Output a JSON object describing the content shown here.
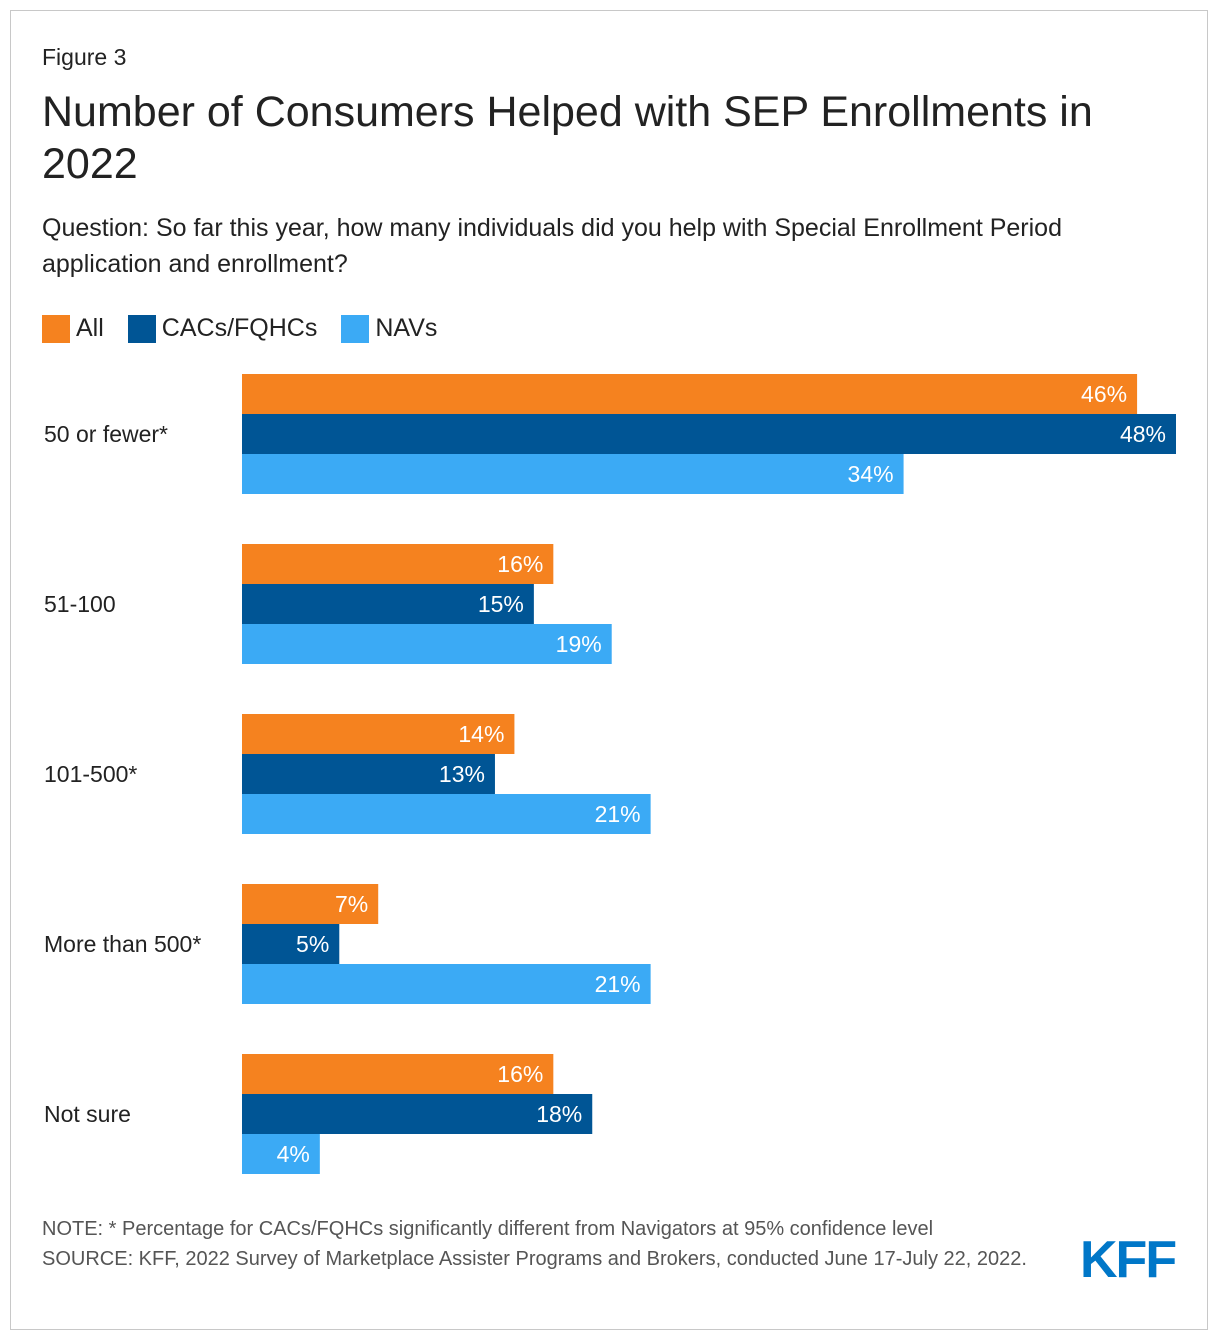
{
  "figure_label": "Figure 3",
  "title": "Number of Consumers Helped with SEP Enrollments in 2022",
  "subtitle": "Question: So far this year, how many individuals did you help with Special Enrollment Period application and enrollment?",
  "note": "NOTE: * Percentage for CACs/FQHCs significantly different from Navigators at 95% confidence level",
  "source": "SOURCE: KFF, 2022 Survey of Marketplace Assister Programs and Brokers, conducted June 17-July 22, 2022.",
  "logo_text": "KFF",
  "colors": {
    "all": "#f5821f",
    "cacs": "#005595",
    "navs": "#3baaf5",
    "logo": "#0077c8"
  },
  "chart_data": {
    "type": "bar",
    "orientation": "horizontal",
    "title": "Number of Consumers Helped with SEP Enrollments in 2022",
    "xlabel": "",
    "ylabel": "",
    "unit": "%",
    "xlim": [
      0,
      48
    ],
    "legend": "top-left",
    "categories": [
      "50 or fewer*",
      "51-100",
      "101-500*",
      "More than 500*",
      "Not sure"
    ],
    "series": [
      {
        "name": "All",
        "color": "#f5821f",
        "values": [
          46,
          16,
          14,
          7,
          16
        ]
      },
      {
        "name": "CACs/FQHCs",
        "color": "#005595",
        "values": [
          48,
          15,
          13,
          5,
          18
        ]
      },
      {
        "name": "NAVs",
        "color": "#3baaf5",
        "values": [
          34,
          19,
          21,
          21,
          4
        ]
      }
    ]
  }
}
